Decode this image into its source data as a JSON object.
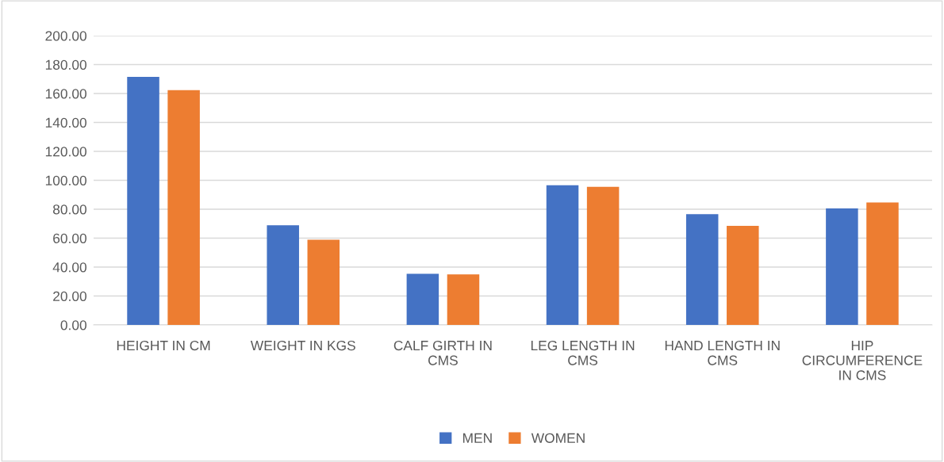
{
  "chart_data": {
    "type": "bar",
    "categories": [
      "HEIGHT IN CM",
      "WEIGHT IN KGS",
      "CALF GIRTH IN\nCMS",
      "LEG LENGTH IN\nCMS",
      "HAND LENGTH IN\nCMS",
      "HIP\nCIRCUMFERENCE\nIN CMS"
    ],
    "series": [
      {
        "name": "MEN",
        "color": "#4472c4",
        "values": [
          171.5,
          68.9,
          35.3,
          96.6,
          76.6,
          80.6
        ]
      },
      {
        "name": "WOMEN",
        "color": "#ed7d31",
        "values": [
          162.3,
          58.9,
          34.9,
          95.5,
          68.5,
          84.7
        ]
      }
    ],
    "ylim": [
      0,
      200
    ],
    "yticks": [
      {
        "value": 0,
        "label": "0.00"
      },
      {
        "value": 20,
        "label": "20.00"
      },
      {
        "value": 40,
        "label": "40.00"
      },
      {
        "value": 60,
        "label": "60.00"
      },
      {
        "value": 80,
        "label": "80.00"
      },
      {
        "value": 100,
        "label": "100.00"
      },
      {
        "value": 120,
        "label": "120.00"
      },
      {
        "value": 140,
        "label": "140.00"
      },
      {
        "value": 160,
        "label": "160.00"
      },
      {
        "value": 180,
        "label": "180.00"
      },
      {
        "value": 200,
        "label": "200.00"
      }
    ],
    "grid": "y",
    "legend": "bottom"
  }
}
